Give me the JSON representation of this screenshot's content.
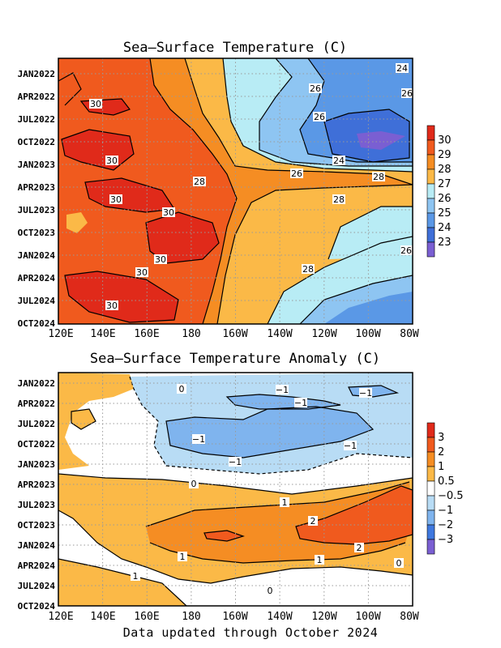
{
  "footer": "Data updated through October 2024",
  "chart_data": [
    {
      "type": "heatmap",
      "title": "Sea—Surface Temperature (C)",
      "x_ticks": [
        "120E",
        "140E",
        "160E",
        "180",
        "160W",
        "140W",
        "120W",
        "100W",
        "80W"
      ],
      "y_ticks": [
        "JAN2022",
        "APR2022",
        "JUL2022",
        "OCT2022",
        "JAN2023",
        "APR2023",
        "JUL2023",
        "OCT2023",
        "JAN2024",
        "APR2024",
        "JUL2024",
        "OCT2024"
      ],
      "colorbar": {
        "labels": [
          "30",
          "29",
          "28",
          "27",
          "26",
          "25",
          "24",
          "23"
        ],
        "colors": [
          "#e02a1a",
          "#f05a1e",
          "#f58d23",
          "#fbb947",
          "#b8ecf5",
          "#8ec5f2",
          "#5a98e6",
          "#3f6fd8",
          "#7a5fd2"
        ]
      },
      "contour_labels": [
        "24",
        "26",
        "26",
        "24",
        "26",
        "28",
        "28",
        "26",
        "28",
        "26",
        "28",
        "30",
        "30",
        "30",
        "30",
        "30",
        "30",
        "30"
      ],
      "grid": true
    },
    {
      "type": "heatmap",
      "title": "Sea—Surface Temperature Anomaly (C)",
      "x_ticks": [
        "120E",
        "140E",
        "160E",
        "180",
        "160W",
        "140W",
        "120W",
        "100W",
        "80W"
      ],
      "y_ticks": [
        "JAN2022",
        "APR2022",
        "JUL2022",
        "OCT2022",
        "JAN2023",
        "APR2023",
        "JUL2023",
        "OCT2023",
        "JAN2024",
        "APR2024",
        "JUL2024",
        "OCT2024"
      ],
      "colorbar": {
        "labels": [
          "3",
          "2",
          "1",
          "0.5",
          "−0.5",
          "−1",
          "−2",
          "−3"
        ],
        "colors": [
          "#e02a1a",
          "#f05a1e",
          "#f58d23",
          "#fbb947",
          "#ffffff",
          "#b8dcf5",
          "#7fb4ee",
          "#3f78df",
          "#7a5fd2"
        ]
      },
      "contour_labels": [
        "0",
        "−1",
        "−1",
        "−1",
        "−1",
        "−1",
        "−1",
        "0",
        "1",
        "2",
        "2",
        "1",
        "1",
        "1",
        "0",
        "0"
      ],
      "grid": true
    }
  ]
}
